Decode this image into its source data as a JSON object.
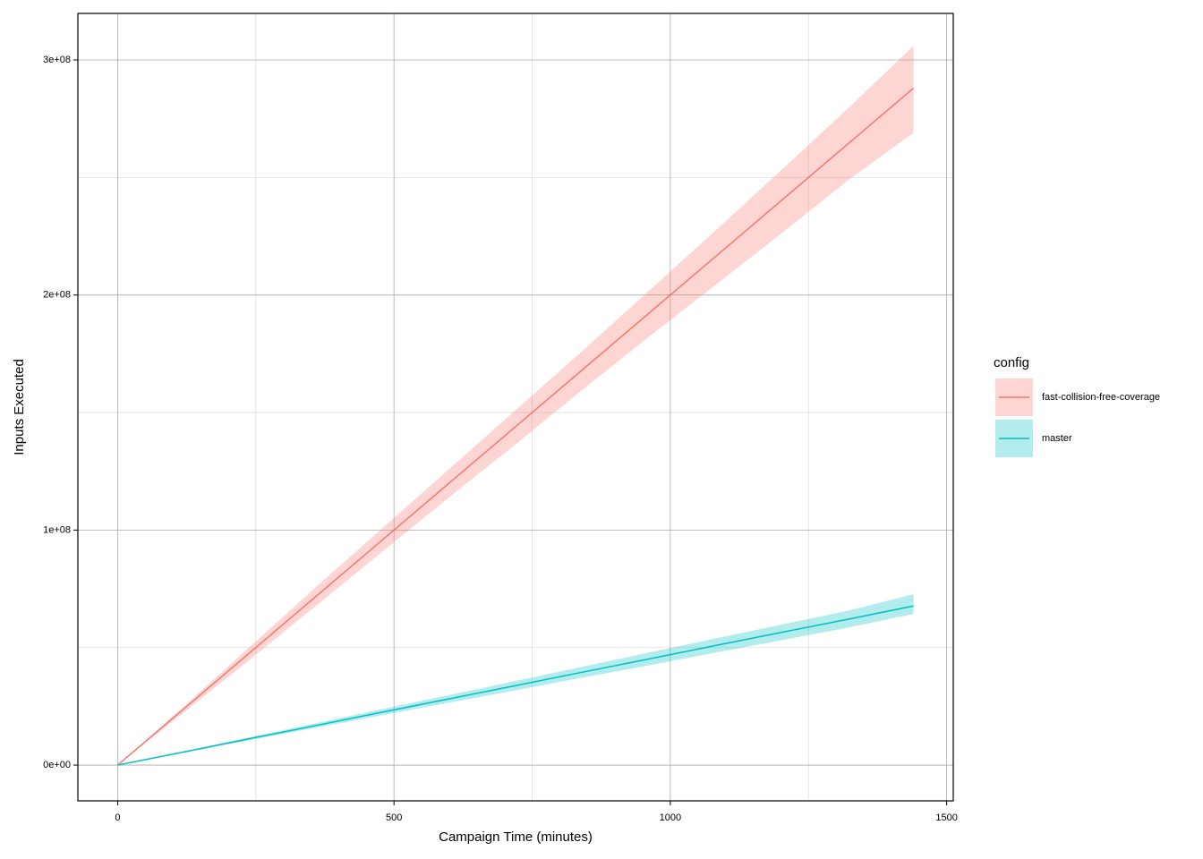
{
  "chart_data": {
    "type": "line",
    "x_label": "Campaign Time (minutes)",
    "y_label": "Inputs Executed",
    "x": [
      0,
      120,
      240,
      360,
      480,
      600,
      720,
      840,
      960,
      1080,
      1200,
      1320,
      1440
    ],
    "series": [
      {
        "name": "fast-collision-free-coverage",
        "color": "#F8766D",
        "values": [
          0,
          24000000,
          48000000,
          72000000,
          96000000,
          120000000,
          144000000,
          168000000,
          192000000,
          216000000,
          240000000,
          264000000,
          288000000
        ],
        "upper": [
          0,
          25000000,
          50500000,
          76000000,
          101000000,
          126000000,
          151000000,
          176000000,
          201500000,
          227000000,
          253000000,
          279000000,
          306000000
        ],
        "lower": [
          0,
          22500000,
          45000000,
          68000000,
          91000000,
          114000000,
          136500000,
          159500000,
          182000000,
          204000000,
          226000000,
          248500000,
          269000000
        ]
      },
      {
        "name": "master",
        "color": "#00BFC4",
        "values": [
          0,
          5600000,
          11300000,
          16900000,
          22600000,
          28200000,
          33800000,
          39500000,
          45100000,
          50800000,
          56400000,
          62000000,
          67700000
        ],
        "upper": [
          0,
          5900000,
          11900000,
          17900000,
          23900000,
          29800000,
          35800000,
          41800000,
          47800000,
          53800000,
          59700000,
          65600000,
          72700000
        ],
        "lower": [
          0,
          5300000,
          10700000,
          15900000,
          21300000,
          26600000,
          31800000,
          37200000,
          42400000,
          47800000,
          53100000,
          58400000,
          64300000
        ]
      }
    ],
    "xlim": [
      -72,
      1512
    ],
    "ylim": [
      -15200000,
      319800000
    ],
    "xticks": [
      0,
      500,
      1000,
      1500
    ],
    "xminor": [
      250,
      750,
      1250
    ],
    "yticks": [
      {
        "value": 0,
        "label": "0e+00"
      },
      {
        "value": 100000000,
        "label": "1e+08"
      },
      {
        "value": 200000000,
        "label": "2e+08"
      },
      {
        "value": 300000000,
        "label": "3e+08"
      }
    ],
    "yminor": [
      50000000,
      150000000,
      250000000
    ],
    "grid": true,
    "legend_title": "config",
    "legend": "right"
  }
}
